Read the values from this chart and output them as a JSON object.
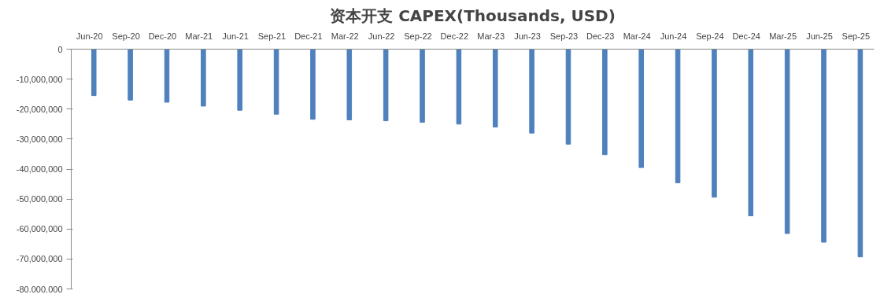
{
  "chart_data": {
    "type": "bar",
    "title": "资本开支 CAPEX(Thousands, USD)",
    "categories": [
      "Jun-20",
      "Sep-20",
      "Dec-20",
      "Mar-21",
      "Jun-21",
      "Sep-21",
      "Dec-21",
      "Mar-22",
      "Jun-22",
      "Sep-22",
      "Dec-22",
      "Mar-23",
      "Jun-23",
      "Sep-23",
      "Dec-23",
      "Mar-24",
      "Jun-24",
      "Sep-24",
      "Dec-24",
      "Mar-25",
      "Jun-25",
      "Sep-25"
    ],
    "values": [
      -15500000,
      -17000000,
      -17700000,
      -19000000,
      -20400000,
      -21700000,
      -23400000,
      -23600000,
      -23900000,
      -24400000,
      -25000000,
      -26000000,
      -28000000,
      -31700000,
      -35200000,
      -39500000,
      -44600000,
      -49400000,
      -55600000,
      -61500000,
      -64400000,
      -69300000
    ],
    "color": "#4f81bd",
    "ylim": [
      -80000000,
      0
    ],
    "yticks": [
      {
        "value": -80000000,
        "label": "-80,000,000"
      },
      {
        "value": -70000000,
        "label": "-70,000,000"
      },
      {
        "value": -60000000,
        "label": "-60,000,000"
      },
      {
        "value": -50000000,
        "label": "-50,000,000"
      },
      {
        "value": -40000000,
        "label": "-40,000,000"
      },
      {
        "value": -30000000,
        "label": "-30,000,000"
      },
      {
        "value": -20000000,
        "label": "-20,000,000"
      },
      {
        "value": -10000000,
        "label": "-10,000,000"
      },
      0
    ],
    "grid": false
  }
}
